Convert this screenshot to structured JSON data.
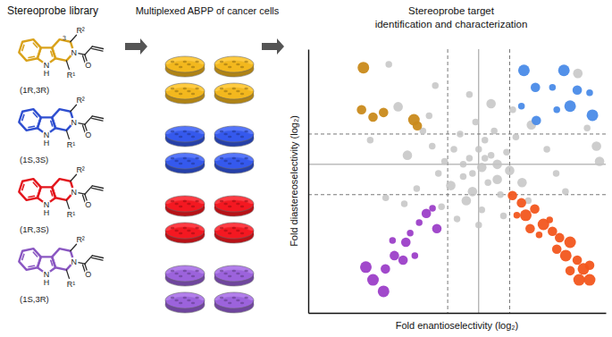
{
  "library": {
    "title": "Stereoprobe library",
    "atoms": {
      "indole_n": "N",
      "indole_h": "H",
      "amide_n": "N",
      "oxygen": "O",
      "r1": "R¹",
      "r2": "R²"
    },
    "probes": [
      {
        "label": "(1R,3R)",
        "color": "#d9a21b",
        "locant": "3"
      },
      {
        "label": "(1S,3S)",
        "color": "#2f4fd0"
      },
      {
        "label": "(1R,3S)",
        "color": "#e3161d"
      },
      {
        "label": "(1S,3R)",
        "color": "#8a57c2"
      }
    ]
  },
  "cells": {
    "title": "Multiplexed ABPP of cancer cells"
  },
  "chart_data": {
    "type": "scatter",
    "title": "Stereoprobe target identification and characterization",
    "x_label": "Fold enantioselectivity (log₂)",
    "y_label": "Fold diastereoselectivity (log₂)",
    "xlim": [
      -5.5,
      4.1
    ],
    "ylim": [
      -4.9,
      3.8
    ],
    "xticks": [
      -1,
      0,
      1
    ],
    "yticks": [
      -1,
      0,
      1
    ],
    "grid": true,
    "tick_labels": false,
    "series": [
      {
        "color": "#c4c4c4",
        "x": [
          -0.3,
          0.1,
          0.4,
          -0.5,
          0.6,
          -0.8,
          0.2,
          -0.2,
          0.9,
          -1.1,
          1.0,
          -0.6,
          0.5,
          -0.4,
          0.7,
          0.0,
          0.3,
          -0.9,
          1.2,
          -1.3,
          -1.5,
          1.4,
          -0.1,
          0.1,
          -1.8,
          1.7,
          -2.0,
          2.2,
          -2.3,
          2.5,
          -1.6,
          1.1,
          -2.6,
          3.5,
          3.8,
          -3.0,
          -2.4,
          0.8,
          -0.7,
          0.4,
          -0.3,
          2.8,
          -3.5,
          0.0,
          0.6,
          -0.5,
          0.2,
          -0.2,
          1.6,
          -1.2,
          3.2,
          -1.4,
          -2.9,
          3.9
        ],
        "values": [
          0.2,
          -0.1,
          0.3,
          -0.4,
          -0.5,
          0.5,
          0.8,
          -0.9,
          0.4,
          0.1,
          -0.2,
          1.0,
          1.1,
          -1.2,
          -1.0,
          0.5,
          -0.6,
          -0.7,
          0.9,
          -0.3,
          0.6,
          -0.6,
          1.4,
          -1.5,
          1.1,
          1.3,
          -0.8,
          0.5,
          0.3,
          -0.3,
          1.6,
          1.8,
          1.9,
          1.2,
          0.6,
          -1.1,
          -1.3,
          -1.7,
          -1.8,
          2.0,
          2.3,
          -0.9,
          0.8,
          -2.0,
          0.0,
          0.0,
          0.2,
          -0.3,
          -1.2,
          -1.4,
          3.0,
          2.6,
          3.3,
          0.1
        ],
        "sizes": [
          1,
          2,
          1,
          1,
          2,
          1,
          1,
          2,
          1,
          1,
          2,
          1,
          1,
          2,
          1,
          1,
          1,
          2,
          1,
          1,
          1,
          2,
          1,
          1,
          1,
          2,
          1,
          1,
          2,
          1,
          1,
          1,
          2,
          1,
          2,
          1,
          1,
          1,
          1,
          2,
          1,
          1,
          1,
          1,
          2,
          1,
          1,
          1,
          1,
          1,
          2,
          1,
          1,
          2
        ]
      },
      {
        "color": "#c98a1b",
        "x": [
          -3.72,
          -3.78,
          -3.41,
          -3.07,
          -2.09,
          -1.98
        ],
        "values": [
          3.19,
          1.8,
          1.56,
          1.71,
          1.47,
          1.27
        ],
        "sizes": [
          3,
          2,
          2,
          2,
          3,
          2
        ]
      },
      {
        "color": "#4a8be8",
        "x": [
          1.46,
          1.83,
          2.38,
          2.75,
          3.18,
          2.95,
          1.86,
          3.67,
          3.58,
          2.52,
          1.38
        ],
        "values": [
          3.1,
          2.54,
          2.54,
          3.1,
          2.45,
          1.92,
          1.45,
          1.62,
          2.36,
          1.8,
          1.92
        ],
        "sizes": [
          3,
          2,
          1,
          3,
          2,
          3,
          2,
          3,
          1,
          1,
          1
        ]
      },
      {
        "color": "#f2561d",
        "x": [
          1.09,
          1.38,
          1.52,
          1.81,
          2.09,
          2.38,
          2.61,
          2.95,
          2.81,
          3.18,
          3.38,
          3.58,
          1.95,
          1.23,
          1.66,
          2.29,
          2.95,
          3.24,
          3.58,
          2.52
        ],
        "values": [
          -1.03,
          -1.27,
          -1.68,
          -1.47,
          -1.98,
          -2.21,
          -2.42,
          -2.57,
          -3.01,
          -3.16,
          -3.45,
          -3.33,
          -2.33,
          -1.68,
          -2.12,
          -1.83,
          -3.51,
          -3.81,
          -3.81,
          -2.8
        ],
        "sizes": [
          2,
          2,
          3,
          2,
          3,
          2,
          2,
          3,
          3,
          2,
          3,
          2,
          1,
          1,
          2,
          1,
          2,
          3,
          3,
          2
        ]
      },
      {
        "color": "#9c3fc8",
        "x": [
          -3.64,
          -3.41,
          -3.01,
          -2.72,
          -2.35,
          -2.21,
          -1.92,
          -1.69,
          -1.49,
          -1.35,
          -2.44,
          -2.06,
          -3.07,
          -2.78
        ],
        "values": [
          -3.39,
          -3.81,
          -3.45,
          -3.01,
          -2.57,
          -2.27,
          -1.92,
          -1.62,
          -1.45,
          -2.12,
          -3.16,
          -3.01,
          -4.19,
          -2.51
        ],
        "sizes": [
          3,
          3,
          2,
          2,
          2,
          1,
          1,
          2,
          1,
          2,
          2,
          1,
          3,
          1
        ]
      }
    ]
  }
}
